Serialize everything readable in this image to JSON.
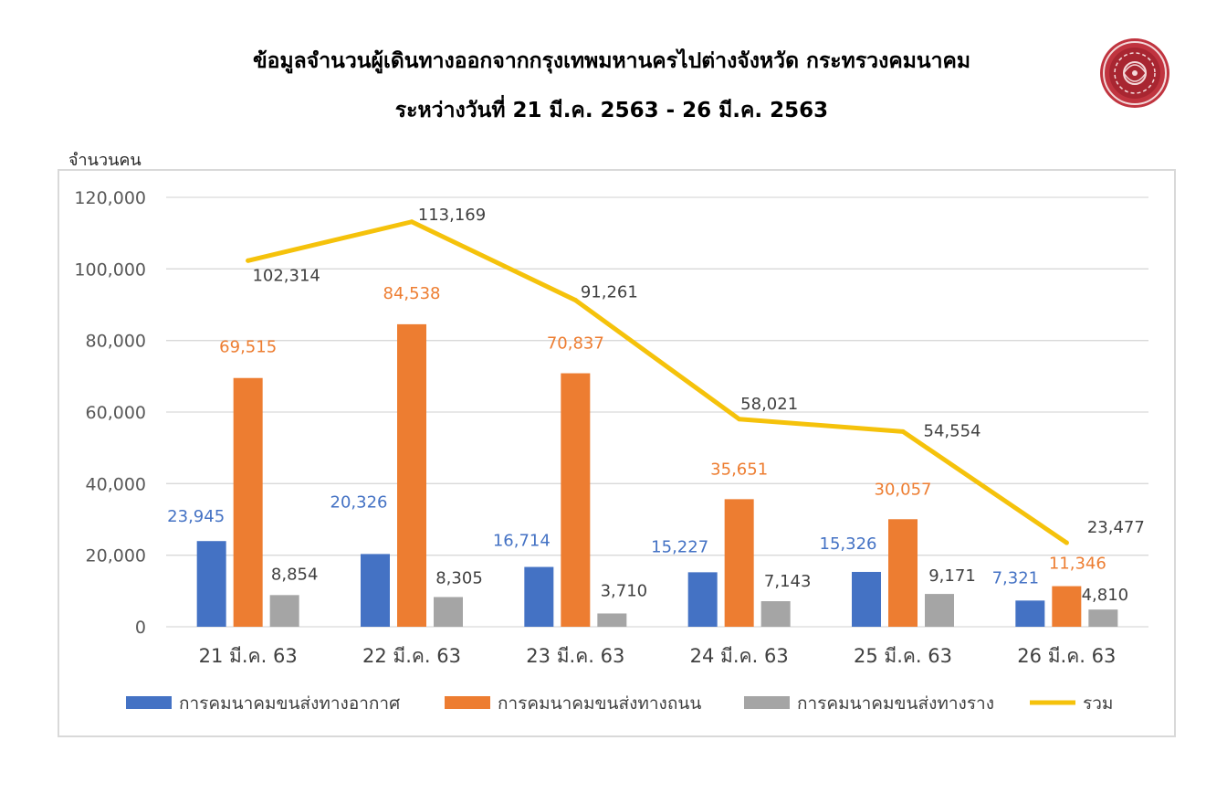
{
  "chart_data": {
    "type": "bar",
    "title": "ข้อมูลจำนวนผู้เดินทางออกจากกรุงเทพมหานครไปต่างจังหวัด กระทรวงคมนาคม",
    "subtitle": "ระหว่างวันที่ 21 มี.ค. 2563 - 26 มี.ค. 2563",
    "xlabel": "",
    "ylabel": "จำนวนคน",
    "ylim": [
      0,
      120000
    ],
    "yticks": [
      0,
      20000,
      40000,
      60000,
      80000,
      100000,
      120000
    ],
    "grid": true,
    "legend_position": "bottom",
    "categories": [
      "21 มี.ค. 63",
      "22 มี.ค. 63",
      "23 มี.ค. 63",
      "24 มี.ค. 63",
      "25 มี.ค. 63",
      "26 มี.ค. 63"
    ],
    "series": [
      {
        "name": "การคมนาคมขนส่งทางอากาศ",
        "type": "bar",
        "color": "#4472c4",
        "label_color": "#4472c4",
        "values": [
          23945,
          20326,
          16714,
          15227,
          15326,
          7321
        ]
      },
      {
        "name": "การคมนาคมขนส่งทางถนน",
        "type": "bar",
        "color": "#ed7d31",
        "label_color": "#ed7d31",
        "values": [
          69515,
          84538,
          70837,
          35651,
          30057,
          11346
        ]
      },
      {
        "name": "การคมนาคมขนส่งทางราง",
        "type": "bar",
        "color": "#a5a5a5",
        "label_color": "#404040",
        "values": [
          8854,
          8305,
          3710,
          7143,
          9171,
          4810
        ]
      },
      {
        "name": "รวม",
        "type": "line",
        "color": "#f5c20b",
        "label_color": "#404040",
        "values": [
          102314,
          113169,
          91261,
          58021,
          54554,
          23477
        ]
      }
    ]
  },
  "logo": {
    "icon": "ministry-seal",
    "color": "#c0343f"
  }
}
